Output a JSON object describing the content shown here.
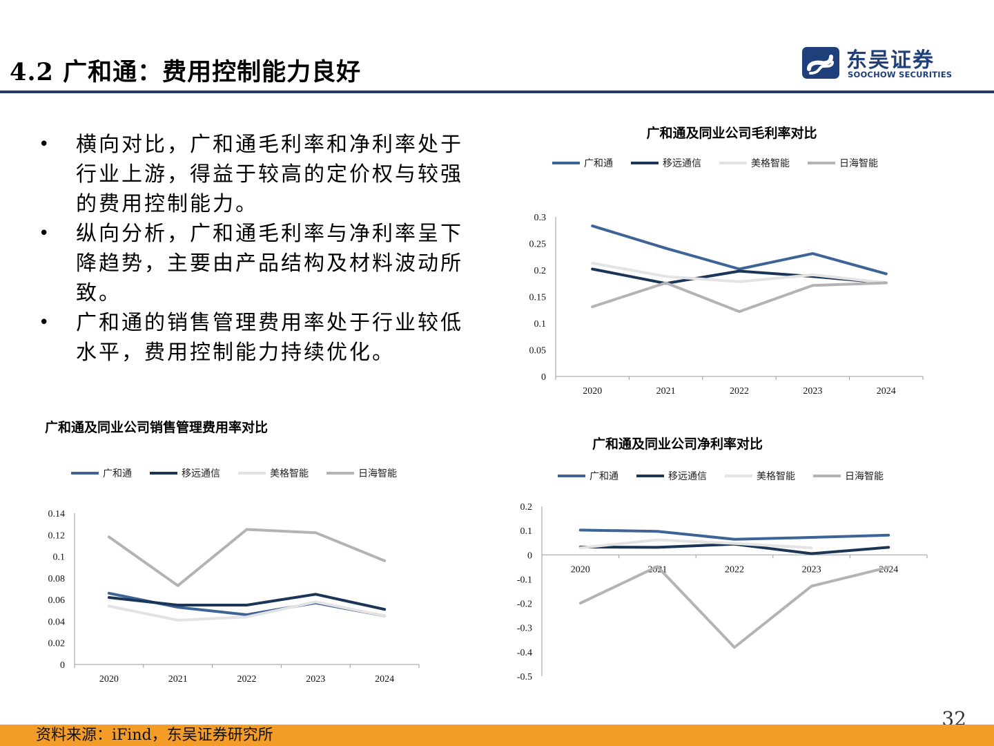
{
  "title": "4.2 广和通：费用控制能力良好",
  "logo": {
    "zh": "东吴证券",
    "en": "SOOCHOW SECURITIES"
  },
  "bullets": [
    "横向对比，广和通毛利率和净利率处于行业上游，得益于较高的定价权与较强的费用控制能力。",
    "纵向分析，广和通毛利率与净利率呈下降趋势，主要由产品结构及材料波动所致。",
    "广和通的销售管理费用率处于行业较低水平，费用控制能力持续优化。"
  ],
  "chart_data": [
    {
      "id": "gross-margin",
      "type": "line",
      "title": "广和通及同业公司毛利率对比",
      "categories": [
        "2020",
        "2021",
        "2022",
        "2023",
        "2024"
      ],
      "ylim": [
        0,
        0.3
      ],
      "yticks": [
        "0",
        "0.05",
        "0.1",
        "0.15",
        "0.2",
        "0.25",
        "0.3"
      ],
      "series": [
        {
          "name": "广和通",
          "color": "#3d6397",
          "values": [
            0.283,
            0.241,
            0.202,
            0.231,
            0.193
          ]
        },
        {
          "name": "移远通信",
          "color": "#1b3558",
          "values": [
            0.202,
            0.175,
            0.198,
            0.188,
            0.176
          ]
        },
        {
          "name": "美格智能",
          "color": "#e3e3e3",
          "values": [
            0.213,
            0.188,
            0.178,
            0.191,
            0.176
          ]
        },
        {
          "name": "日海智能",
          "color": "#b3b3b3",
          "values": [
            0.131,
            0.176,
            0.122,
            0.171,
            0.176
          ]
        }
      ],
      "legend": "top"
    },
    {
      "id": "selling-admin",
      "type": "line",
      "title": "广和通及同业公司销售管理费用率对比",
      "categories": [
        "2020",
        "2021",
        "2022",
        "2023",
        "2024"
      ],
      "ylim": [
        0,
        0.14
      ],
      "yticks": [
        "0",
        "0.02",
        "0.04",
        "0.06",
        "0.08",
        "0.1",
        "0.12",
        "0.14"
      ],
      "series": [
        {
          "name": "广和通",
          "color": "#3d6397",
          "values": [
            0.066,
            0.053,
            0.046,
            0.057,
            0.045
          ]
        },
        {
          "name": "移远通信",
          "color": "#1b3558",
          "values": [
            0.062,
            0.055,
            0.055,
            0.065,
            0.051
          ]
        },
        {
          "name": "美格智能",
          "color": "#e3e3e3",
          "values": [
            0.054,
            0.041,
            0.044,
            0.058,
            0.045
          ]
        },
        {
          "name": "日海智能",
          "color": "#b3b3b3",
          "values": [
            0.118,
            0.073,
            0.125,
            0.122,
            0.096
          ]
        }
      ],
      "legend": "top"
    },
    {
      "id": "net-margin",
      "type": "line",
      "title": "广和通及同业公司净利率对比",
      "categories": [
        "2020",
        "2021",
        "2022",
        "2023",
        "2024"
      ],
      "ylim": [
        -0.5,
        0.2
      ],
      "yticks": [
        "-0.5",
        "-0.4",
        "-0.3",
        "-0.2",
        "-0.1",
        "0",
        "0.1",
        "0.2"
      ],
      "series": [
        {
          "name": "广和通",
          "color": "#3d6397",
          "values": [
            0.102,
            0.097,
            0.064,
            0.072,
            0.081
          ]
        },
        {
          "name": "移远通信",
          "color": "#1b3558",
          "values": [
            0.032,
            0.031,
            0.044,
            0.005,
            0.031
          ]
        },
        {
          "name": "美格智能",
          "color": "#e3e3e3",
          "values": [
            0.029,
            0.062,
            0.047,
            0.029,
            null
          ]
        },
        {
          "name": "日海智能",
          "color": "#b3b3b3",
          "values": [
            -0.199,
            -0.048,
            -0.381,
            -0.129,
            -0.051
          ]
        }
      ],
      "legend": "top"
    }
  ],
  "page_number": "32",
  "source": "资料来源：iFind，东吴证券研究所"
}
